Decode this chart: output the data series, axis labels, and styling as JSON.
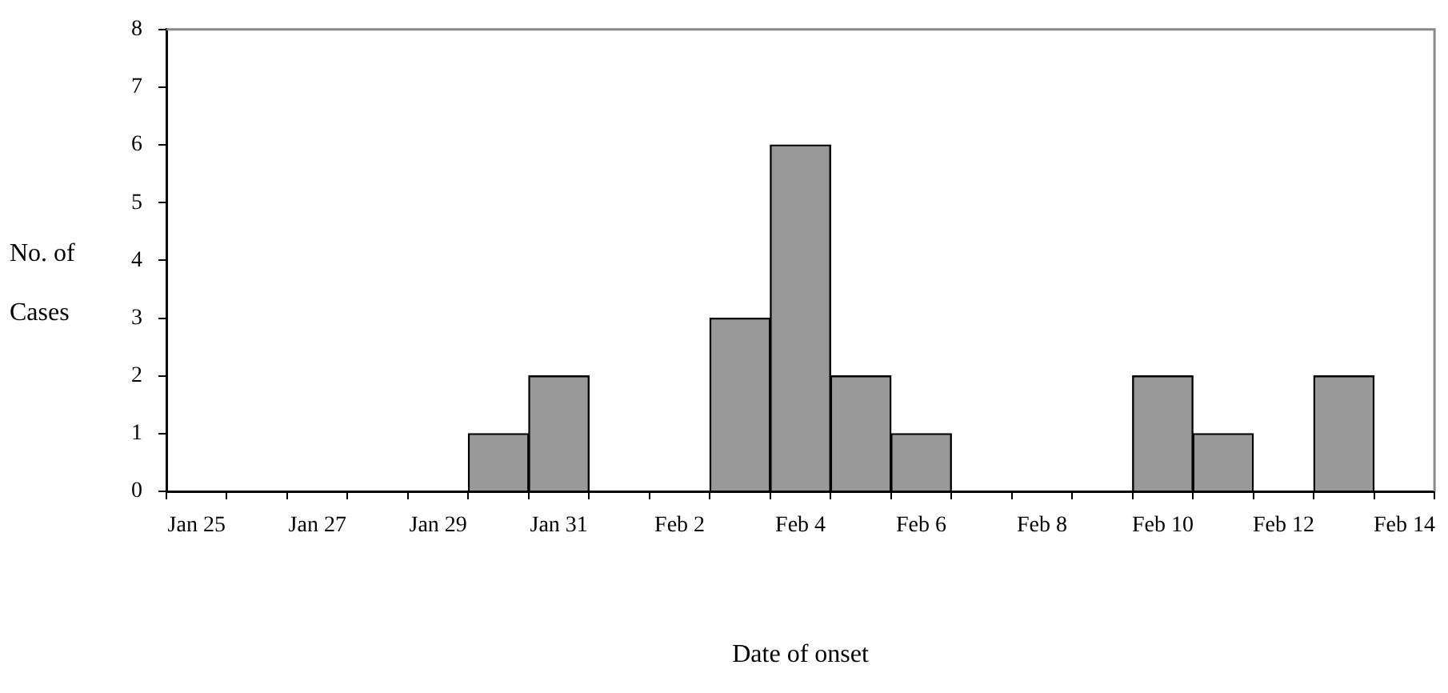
{
  "chart_data": {
    "type": "bar",
    "xlabel": "Date of onset",
    "ylabel": "No. of Cases",
    "categories": [
      "Jan 25",
      null,
      "Jan 27",
      null,
      "Jan 29",
      null,
      "Jan 31",
      null,
      "Feb 2",
      null,
      "Feb 4",
      null,
      "Feb 6",
      null,
      "Feb 8",
      null,
      "Feb 10",
      null,
      "Feb 12",
      null,
      "Feb 14"
    ],
    "values": [
      0,
      0,
      0,
      0,
      0,
      1,
      2,
      0,
      0,
      3,
      6,
      2,
      1,
      0,
      0,
      0,
      2,
      1,
      0,
      2,
      0
    ],
    "color": "#999999",
    "ylim": [
      0,
      8
    ],
    "yticks": [
      0,
      1,
      2,
      3,
      4,
      5,
      6,
      7,
      8
    ],
    "grid": false,
    "legend": false
  }
}
